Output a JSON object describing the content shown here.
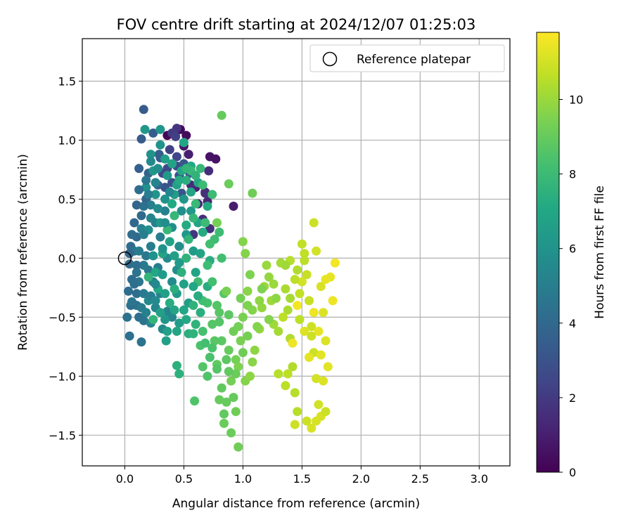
{
  "chart_data": {
    "type": "scatter",
    "title": "FOV centre drift starting at 2024/12/07 01:25:03",
    "xlabel": "Angular distance from reference (arcmin)",
    "ylabel": "Rotation from reference (arcmin)",
    "xlim": [
      -0.36,
      3.26
    ],
    "ylim": [
      -1.76,
      1.86
    ],
    "xticks": [
      0.0,
      0.5,
      1.0,
      1.5,
      2.0,
      2.5,
      3.0
    ],
    "xtick_labels": [
      "0.0",
      "0.5",
      "1.0",
      "1.5",
      "2.0",
      "2.5",
      "3.0"
    ],
    "yticks": [
      -1.5,
      -1.0,
      -0.5,
      0.0,
      0.5,
      1.0,
      1.5
    ],
    "ytick_labels": [
      "−1.5",
      "−1.0",
      "−0.5",
      "0.0",
      "0.5",
      "1.0",
      "1.5"
    ],
    "grid": true,
    "legend": {
      "position": "top-right",
      "entries": [
        {
          "label": "Reference platepar",
          "marker": "open-circle",
          "x": 0.0,
          "y": 0.0
        }
      ]
    },
    "colorbar": {
      "label": "Hours from first FF file",
      "range": [
        0,
        11.8
      ],
      "ticks": [
        0,
        2,
        4,
        6,
        8,
        10
      ],
      "tick_labels": [
        "0",
        "2",
        "4",
        "6",
        "8",
        "10"
      ],
      "colormap": "viridis"
    },
    "points": [
      [
        0.36,
        1.04,
        0.1
      ],
      [
        0.47,
        1.09,
        0.2
      ],
      [
        0.52,
        1.04,
        0.3
      ],
      [
        0.72,
        0.86,
        0.6
      ],
      [
        0.77,
        0.84,
        0.6
      ],
      [
        0.92,
        0.44,
        0.9
      ],
      [
        0.5,
        0.95,
        0.7
      ],
      [
        0.54,
        0.88,
        1.0
      ],
      [
        0.6,
        0.6,
        1.1
      ],
      [
        0.68,
        0.56,
        1.2
      ],
      [
        0.62,
        0.46,
        1.3
      ],
      [
        0.7,
        0.48,
        1.3
      ],
      [
        0.66,
        0.33,
        1.5
      ],
      [
        0.72,
        0.25,
        1.6
      ],
      [
        0.56,
        0.62,
        1.4
      ],
      [
        0.71,
        0.74,
        1.5
      ],
      [
        0.58,
        0.2,
        1.8
      ],
      [
        0.68,
        0.55,
        1.6
      ],
      [
        0.44,
        1.1,
        1.8
      ],
      [
        0.4,
        1.06,
        2.0
      ],
      [
        0.43,
        1.03,
        2.2
      ],
      [
        0.38,
        0.92,
        2.3
      ],
      [
        0.44,
        0.86,
        2.5
      ],
      [
        0.36,
        0.76,
        2.6
      ],
      [
        0.32,
        0.72,
        2.5
      ],
      [
        0.44,
        0.78,
        2.8
      ],
      [
        0.4,
        0.64,
        2.9
      ],
      [
        0.34,
        0.6,
        3.0
      ],
      [
        0.46,
        0.7,
        3.0
      ],
      [
        0.48,
        0.55,
        3.1
      ],
      [
        0.5,
        0.8,
        3.2
      ],
      [
        0.55,
        0.72,
        3.3
      ],
      [
        0.3,
        0.85,
        3.3
      ],
      [
        0.16,
        1.26,
        3.4
      ],
      [
        0.14,
        1.01,
        3.4
      ],
      [
        0.24,
        1.06,
        3.5
      ],
      [
        0.29,
        0.88,
        3.5
      ],
      [
        0.12,
        0.76,
        3.6
      ],
      [
        0.2,
        0.72,
        3.7
      ],
      [
        0.28,
        0.62,
        3.7
      ],
      [
        0.18,
        0.5,
        3.8
      ],
      [
        0.1,
        0.45,
        3.8
      ],
      [
        0.08,
        0.3,
        3.9
      ],
      [
        0.14,
        0.36,
        4.0
      ],
      [
        0.1,
        0.18,
        4.0
      ],
      [
        0.05,
        0.1,
        4.1
      ],
      [
        0.04,
        -0.05,
        4.1
      ],
      [
        0.06,
        -0.18,
        4.2
      ],
      [
        0.03,
        -0.28,
        4.2
      ],
      [
        0.1,
        -0.3,
        4.2
      ],
      [
        0.05,
        -0.4,
        4.3
      ],
      [
        0.12,
        -0.5,
        4.3
      ],
      [
        0.1,
        -0.4,
        4.4
      ],
      [
        0.02,
        -0.5,
        4.4
      ],
      [
        0.04,
        -0.66,
        4.4
      ],
      [
        0.14,
        -0.71,
        4.5
      ],
      [
        0.16,
        -0.53,
        4.5
      ],
      [
        0.06,
        -0.37,
        4.6
      ],
      [
        0.12,
        -0.2,
        4.6
      ],
      [
        0.08,
        0.06,
        4.6
      ],
      [
        0.2,
        -0.1,
        4.7
      ],
      [
        0.18,
        0.02,
        4.7
      ],
      [
        0.16,
        -0.3,
        4.8
      ],
      [
        0.24,
        -0.2,
        4.8
      ],
      [
        0.28,
        -0.08,
        4.9
      ],
      [
        0.22,
        0.1,
        4.9
      ],
      [
        0.3,
        0.18,
        5.0
      ],
      [
        0.26,
        0.3,
        5.0
      ],
      [
        0.34,
        0.4,
        5.1
      ],
      [
        0.22,
        0.45,
        5.1
      ],
      [
        0.14,
        0.25,
        5.2
      ],
      [
        0.3,
        -0.3,
        5.2
      ],
      [
        0.36,
        -0.45,
        5.3
      ],
      [
        0.26,
        -0.42,
        5.3
      ],
      [
        0.22,
        -0.55,
        5.4
      ],
      [
        0.4,
        -0.5,
        5.4
      ],
      [
        0.32,
        -0.6,
        5.5
      ],
      [
        0.2,
        -0.36,
        5.5
      ],
      [
        0.4,
        -0.2,
        5.6
      ],
      [
        0.36,
        0.0,
        5.6
      ],
      [
        0.44,
        -0.1,
        5.7
      ],
      [
        0.46,
        0.1,
        5.7
      ],
      [
        0.4,
        0.26,
        5.8
      ],
      [
        0.48,
        0.4,
        5.8
      ],
      [
        0.34,
        0.5,
        5.9
      ],
      [
        0.18,
        0.6,
        5.9
      ],
      [
        0.22,
        0.88,
        6.0
      ],
      [
        0.3,
        0.96,
        6.0
      ],
      [
        0.3,
        1.09,
        6.1
      ],
      [
        0.17,
        1.09,
        6.2
      ],
      [
        0.24,
        0.74,
        6.2
      ],
      [
        0.5,
        0.5,
        6.2
      ],
      [
        0.56,
        0.4,
        6.3
      ],
      [
        0.52,
        0.2,
        6.3
      ],
      [
        0.58,
        0.06,
        6.4
      ],
      [
        0.44,
        -0.3,
        6.4
      ],
      [
        0.54,
        -0.38,
        6.5
      ],
      [
        0.46,
        -0.55,
        6.5
      ],
      [
        0.36,
        -0.62,
        6.6
      ],
      [
        0.35,
        -0.7,
        6.6
      ],
      [
        0.3,
        -0.46,
        6.7
      ],
      [
        0.5,
        -0.22,
        6.7
      ],
      [
        0.6,
        -0.12,
        6.8
      ],
      [
        0.64,
        0.04,
        6.8
      ],
      [
        0.62,
        0.3,
        6.9
      ],
      [
        0.56,
        0.56,
        6.9
      ],
      [
        0.48,
        0.74,
        7.0
      ],
      [
        0.5,
        0.98,
        7.0
      ],
      [
        0.56,
        0.78,
        7.1
      ],
      [
        0.62,
        0.64,
        7.1
      ],
      [
        0.7,
        0.44,
        7.2
      ],
      [
        0.66,
        0.22,
        7.2
      ],
      [
        0.72,
        -0.02,
        7.3
      ],
      [
        0.7,
        -0.24,
        7.3
      ],
      [
        0.64,
        -0.46,
        7.4
      ],
      [
        0.54,
        -0.64,
        7.4
      ],
      [
        0.46,
        -0.98,
        7.5
      ],
      [
        0.44,
        -0.91,
        7.5
      ],
      [
        0.58,
        -0.4,
        7.6
      ],
      [
        0.6,
        -0.56,
        7.6
      ],
      [
        0.24,
        -0.52,
        7.7
      ],
      [
        0.2,
        -0.16,
        7.7
      ],
      [
        0.36,
        0.24,
        7.8
      ],
      [
        0.42,
        0.36,
        7.8
      ],
      [
        0.56,
        0.74,
        7.9
      ],
      [
        0.66,
        0.62,
        8.0
      ],
      [
        0.74,
        0.54,
        8.0
      ],
      [
        0.8,
        0.22,
        8.1
      ],
      [
        0.76,
        0.16,
        8.1
      ],
      [
        0.82,
        0.0,
        8.2
      ],
      [
        0.74,
        -0.2,
        8.2
      ],
      [
        0.7,
        -0.38,
        8.3
      ],
      [
        0.66,
        -0.62,
        8.3
      ],
      [
        0.64,
        -0.74,
        8.4
      ],
      [
        0.72,
        -0.84,
        8.4
      ],
      [
        0.7,
        -1.0,
        8.5
      ],
      [
        0.59,
        -1.21,
        8.5
      ],
      [
        0.66,
        -0.92,
        8.6
      ],
      [
        0.74,
        -0.56,
        8.6
      ],
      [
        0.8,
        -0.46,
        8.7
      ],
      [
        0.84,
        -0.3,
        8.7
      ],
      [
        0.88,
        -0.48,
        8.8
      ],
      [
        0.82,
        -0.7,
        8.8
      ],
      [
        0.78,
        -0.9,
        8.9
      ],
      [
        0.82,
        -1.1,
        8.9
      ],
      [
        0.8,
        -1.2,
        9.0
      ],
      [
        0.86,
        -1.22,
        9.0
      ],
      [
        0.84,
        -1.4,
        9.1
      ],
      [
        0.9,
        -1.48,
        9.1
      ],
      [
        0.96,
        -1.6,
        9.2
      ],
      [
        0.94,
        -1.3,
        9.2
      ],
      [
        0.9,
        -1.04,
        9.3
      ],
      [
        0.94,
        -0.86,
        9.3
      ],
      [
        0.98,
        -0.7,
        9.4
      ],
      [
        1.0,
        -0.5,
        9.4
      ],
      [
        1.04,
        -0.4,
        9.5
      ],
      [
        1.06,
        -0.14,
        9.5
      ],
      [
        1.02,
        0.04,
        9.6
      ],
      [
        1.0,
        0.14,
        9.6
      ],
      [
        1.04,
        -0.28,
        9.7
      ],
      [
        0.82,
        1.21,
        9.0
      ],
      [
        0.88,
        0.63,
        9.1
      ],
      [
        1.08,
        0.55,
        9.2
      ],
      [
        0.78,
        0.3,
        9.3
      ],
      [
        0.86,
        -0.28,
        9.4
      ],
      [
        0.96,
        -0.92,
        9.5
      ],
      [
        1.02,
        -1.04,
        9.6
      ],
      [
        1.08,
        -0.88,
        9.7
      ],
      [
        1.06,
        -1.0,
        9.8
      ],
      [
        1.1,
        -0.78,
        9.8
      ],
      [
        1.14,
        -0.6,
        9.9
      ],
      [
        1.16,
        -0.42,
        9.9
      ],
      [
        1.18,
        -0.24,
        10.0
      ],
      [
        1.2,
        -0.06,
        10.0
      ],
      [
        1.24,
        -0.36,
        10.1
      ],
      [
        1.26,
        -0.56,
        10.1
      ],
      [
        1.3,
        -0.62,
        10.2
      ],
      [
        1.32,
        -0.04,
        10.2
      ],
      [
        1.36,
        -0.26,
        10.3
      ],
      [
        1.38,
        -0.44,
        10.3
      ],
      [
        1.4,
        -0.68,
        10.4
      ],
      [
        1.42,
        -0.92,
        10.4
      ],
      [
        1.44,
        -1.14,
        10.5
      ],
      [
        1.46,
        -1.3,
        10.5
      ],
      [
        1.48,
        -0.52,
        10.6
      ],
      [
        1.34,
        -0.5,
        10.6
      ],
      [
        1.3,
        -0.98,
        10.5
      ],
      [
        1.36,
        -1.08,
        10.6
      ],
      [
        1.38,
        -0.98,
        10.6
      ],
      [
        1.5,
        0.12,
        10.7
      ],
      [
        1.52,
        0.04,
        10.7
      ],
      [
        1.54,
        -0.14,
        10.8
      ],
      [
        1.56,
        -0.36,
        10.8
      ],
      [
        1.58,
        -0.58,
        10.9
      ],
      [
        1.6,
        -0.8,
        10.9
      ],
      [
        1.62,
        -1.02,
        11.0
      ],
      [
        1.64,
        -1.24,
        11.0
      ],
      [
        1.66,
        -1.34,
        11.1
      ],
      [
        1.6,
        0.3,
        10.9
      ],
      [
        1.62,
        0.06,
        11.0
      ],
      [
        1.66,
        -0.24,
        11.1
      ],
      [
        1.68,
        -0.46,
        11.2
      ],
      [
        1.7,
        -0.7,
        11.2
      ],
      [
        1.72,
        -0.92,
        11.3
      ],
      [
        1.74,
        -0.16,
        11.4
      ],
      [
        1.76,
        -0.36,
        11.5
      ],
      [
        1.78,
        -0.04,
        11.6
      ],
      [
        1.44,
        -1.41,
        10.9
      ],
      [
        1.58,
        -1.44,
        11.1
      ],
      [
        1.42,
        -0.72,
        11.5
      ],
      [
        1.46,
        -0.4,
        11.6
      ],
      [
        1.5,
        -0.2,
        11.0
      ],
      [
        1.52,
        -0.62,
        11.2
      ],
      [
        1.56,
        -0.84,
        11.3
      ],
      [
        1.64,
        -0.62,
        11.4
      ],
      [
        1.68,
        -1.04,
        11.2
      ],
      [
        1.62,
        -1.38,
        11.1
      ],
      [
        1.7,
        -1.3,
        10.9
      ],
      [
        1.4,
        -0.02,
        10.5
      ],
      [
        1.44,
        -0.18,
        10.6
      ],
      [
        1.48,
        -0.3,
        10.7
      ],
      [
        1.54,
        -1.38,
        10.9
      ],
      [
        1.46,
        -0.1,
        10.4
      ],
      [
        1.52,
        -0.02,
        10.6
      ],
      [
        1.58,
        -0.66,
        10.9
      ],
      [
        1.66,
        -0.82,
        11.3
      ],
      [
        1.7,
        -0.18,
        11.4
      ],
      [
        1.6,
        -0.46,
        11.5
      ],
      [
        1.4,
        -0.34,
        10.2
      ],
      [
        1.36,
        -0.06,
        10.1
      ],
      [
        1.28,
        -0.34,
        9.8
      ],
      [
        1.22,
        -0.52,
        9.6
      ],
      [
        1.12,
        -0.58,
        9.6
      ],
      [
        1.16,
        -0.26,
        9.5
      ],
      [
        0.98,
        -0.34,
        9.3
      ],
      [
        0.92,
        -0.62,
        9.2
      ],
      [
        0.88,
        -0.78,
        9.0
      ],
      [
        0.94,
        -0.98,
        9.1
      ],
      [
        1.0,
        -0.8,
        9.2
      ],
      [
        1.04,
        -0.66,
        9.3
      ],
      [
        0.76,
        -0.7,
        8.7
      ],
      [
        0.86,
        -0.86,
        8.8
      ],
      [
        0.92,
        -1.18,
        9.0
      ],
      [
        0.84,
        -1.32,
        8.9
      ],
      [
        0.78,
        -0.4,
        8.6
      ],
      [
        0.8,
        -0.54,
        8.6
      ],
      [
        0.66,
        -0.36,
        8.2
      ],
      [
        0.62,
        -0.2,
        8.0
      ],
      [
        0.7,
        -0.06,
        8.1
      ],
      [
        0.72,
        0.12,
        8.2
      ],
      [
        0.68,
        0.3,
        8.0
      ],
      [
        0.6,
        0.46,
        7.9
      ],
      [
        0.58,
        0.34,
        7.8
      ],
      [
        0.54,
        0.16,
        7.7
      ],
      [
        0.52,
        0.0,
        7.6
      ],
      [
        0.48,
        -0.12,
        7.5
      ],
      [
        0.42,
        -0.26,
        7.4
      ],
      [
        0.38,
        -0.38,
        7.3
      ],
      [
        0.28,
        -0.26,
        7.1
      ],
      [
        0.26,
        -0.12,
        7.0
      ],
      [
        0.32,
        0.04,
        6.9
      ],
      [
        0.38,
        0.14,
        6.8
      ],
      [
        0.42,
        0.02,
        6.6
      ],
      [
        0.46,
        -0.04,
        6.4
      ],
      [
        0.3,
        0.3,
        6.3
      ],
      [
        0.26,
        0.54,
        6.1
      ],
      [
        0.36,
        0.7,
        6.3
      ],
      [
        0.42,
        0.54,
        6.5
      ],
      [
        0.4,
        0.46,
        7.1
      ],
      [
        0.52,
        0.28,
        7.2
      ],
      [
        0.58,
        -0.24,
        7.0
      ],
      [
        0.62,
        -0.32,
        7.3
      ],
      [
        0.5,
        -0.44,
        7.0
      ],
      [
        0.42,
        -0.44,
        6.9
      ],
      [
        0.34,
        -0.3,
        6.6
      ],
      [
        0.32,
        -0.14,
        6.4
      ],
      [
        0.24,
        0.02,
        5.9
      ],
      [
        0.2,
        0.24,
        5.8
      ],
      [
        0.28,
        0.42,
        5.6
      ],
      [
        0.38,
        0.56,
        5.4
      ],
      [
        0.26,
        0.64,
        5.2
      ],
      [
        0.22,
        0.34,
        5.3
      ],
      [
        0.16,
        0.2,
        5.0
      ],
      [
        0.12,
        0.06,
        4.9
      ],
      [
        0.16,
        -0.06,
        4.8
      ],
      [
        0.1,
        -0.12,
        4.5
      ],
      [
        0.08,
        -0.22,
        4.3
      ],
      [
        0.14,
        -0.42,
        4.9
      ],
      [
        0.22,
        -0.32,
        5.0
      ],
      [
        0.26,
        -0.22,
        5.5
      ],
      [
        0.32,
        0.08,
        6.0
      ],
      [
        0.34,
        0.3,
        5.7
      ],
      [
        0.44,
        0.62,
        6.7
      ],
      [
        0.52,
        0.66,
        7.4
      ],
      [
        0.6,
        0.7,
        7.6
      ],
      [
        0.64,
        0.76,
        7.8
      ],
      [
        0.52,
        0.76,
        7.7
      ],
      [
        0.46,
        0.66,
        7.2
      ],
      [
        0.4,
        0.8,
        6.8
      ],
      [
        0.34,
        0.84,
        6.6
      ],
      [
        0.28,
        0.76,
        5.7
      ],
      [
        0.22,
        0.82,
        5.5
      ],
      [
        0.18,
        0.66,
        4.6
      ],
      [
        0.12,
        0.58,
        4.2
      ],
      [
        0.16,
        0.44,
        4.4
      ],
      [
        0.2,
        0.54,
        5.0
      ],
      [
        0.06,
        0.2,
        4.2
      ],
      [
        0.04,
        0.04,
        4.0
      ],
      [
        0.1,
        -0.06,
        4.3
      ],
      [
        0.18,
        -0.46,
        5.1
      ],
      [
        0.26,
        -0.36,
        5.6
      ],
      [
        0.34,
        -0.52,
        6.2
      ],
      [
        0.44,
        -0.62,
        6.9
      ],
      [
        0.52,
        -0.52,
        7.1
      ],
      [
        0.58,
        -0.64,
        7.6
      ],
      [
        0.68,
        -0.72,
        8.2
      ],
      [
        0.74,
        -0.76,
        8.4
      ],
      [
        0.78,
        -0.94,
        8.6
      ],
      [
        0.88,
        -0.96,
        8.9
      ],
      [
        0.96,
        -0.58,
        9.3
      ],
      [
        1.08,
        -0.44,
        9.6
      ],
      [
        1.14,
        -0.36,
        9.8
      ],
      [
        1.22,
        -0.16,
        9.9
      ],
      [
        1.26,
        -0.22,
        10.0
      ]
    ]
  }
}
